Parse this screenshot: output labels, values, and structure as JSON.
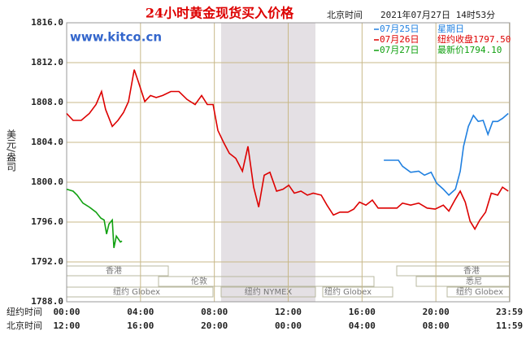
{
  "chart_data": {
    "type": "line",
    "title": "24小时黄金现货买入价格",
    "time_zone_label": "北京时间",
    "timestamp": "2021年07月27日 14时53分",
    "watermark": "www.kitco.cn",
    "y_label": "美元/盎司",
    "x_row_labels": [
      "纽约时间",
      "北京时间"
    ],
    "xlim": [
      0,
      24
    ],
    "xticks": [
      {
        "value": 0,
        "label": "00:00"
      },
      {
        "value": 4,
        "label": "04:00"
      },
      {
        "value": 8,
        "label": "08:00"
      },
      {
        "value": 12,
        "label": "12:00"
      },
      {
        "value": 16,
        "label": "16:00"
      },
      {
        "value": 20,
        "label": "20:00"
      },
      {
        "value": 23.98,
        "label": "23:59"
      }
    ],
    "xticks_beijing": [
      "12:00",
      "16:00",
      "20:00",
      "00:00",
      "04:00",
      "08:00",
      "11:59"
    ],
    "ylim": [
      1788,
      1816
    ],
    "yticks": [
      {
        "value": 1788,
        "label": "1788.0"
      },
      {
        "value": 1792,
        "label": "1792.0"
      },
      {
        "value": 1796,
        "label": "1796.0"
      },
      {
        "value": 1800,
        "label": "1800.0"
      },
      {
        "value": 1804,
        "label": "1804.0"
      },
      {
        "value": 1808,
        "label": "1808.0"
      },
      {
        "value": 1812,
        "label": "1812.0"
      },
      {
        "value": 1816,
        "label": "1816.0"
      }
    ],
    "grid": true,
    "session_labels": [
      "香港",
      "香港",
      "伦敦",
      "悉尼",
      "纽约 Globex",
      "纽约 NYMEX",
      "纽约 Globex",
      "纽约 Globex"
    ],
    "series": [
      {
        "name": "07月25日",
        "note": "星期日",
        "color": "#2080e0",
        "x": [
          17.18,
          17.97,
          18.19,
          18.63,
          19.07,
          19.38,
          19.74,
          20.04,
          20.4,
          20.7,
          21.06,
          21.32,
          21.5,
          21.76,
          22.03,
          22.29,
          22.56,
          22.82,
          23.08,
          23.35,
          23.61,
          23.92
        ],
        "values": [
          1802.2,
          1802.2,
          1801.6,
          1801.0,
          1801.1,
          1800.7,
          1801.0,
          1799.9,
          1799.3,
          1798.7,
          1799.3,
          1801.1,
          1803.6,
          1805.6,
          1806.7,
          1806.1,
          1806.2,
          1804.8,
          1806.1,
          1806.1,
          1806.4,
          1806.9
        ]
      },
      {
        "name": "07月26日",
        "note": "纽约收盘1797.50",
        "color": "#dd0000",
        "x": [
          0,
          0.35,
          0.79,
          1.23,
          1.59,
          1.89,
          2.11,
          2.47,
          2.78,
          3.08,
          3.35,
          3.66,
          3.88,
          4.23,
          4.54,
          4.85,
          5.2,
          5.64,
          6.08,
          6.52,
          6.96,
          7.31,
          7.62,
          7.93,
          8.19,
          8.5,
          8.81,
          9.16,
          9.52,
          9.82,
          10.13,
          10.4,
          10.7,
          11.01,
          11.37,
          11.72,
          12.03,
          12.33,
          12.69,
          13.04,
          13.35,
          13.79,
          14.1,
          14.45,
          14.8,
          15.24,
          15.55,
          15.86,
          16.21,
          16.56,
          16.87,
          17.18,
          17.89,
          18.19,
          18.63,
          19.07,
          19.52,
          19.96,
          20.4,
          20.7,
          21.06,
          21.32,
          21.59,
          21.85,
          22.11,
          22.38,
          22.69,
          23.0,
          23.35,
          23.61,
          23.92
        ],
        "values": [
          1806.9,
          1806.2,
          1806.2,
          1806.9,
          1807.8,
          1809.1,
          1807.3,
          1805.6,
          1806.2,
          1807.0,
          1808.1,
          1811.3,
          1810.1,
          1808.1,
          1808.7,
          1808.5,
          1808.7,
          1809.1,
          1809.1,
          1808.3,
          1807.8,
          1808.7,
          1807.8,
          1807.8,
          1805.2,
          1804.0,
          1802.9,
          1802.4,
          1801.1,
          1803.6,
          1799.5,
          1797.5,
          1800.7,
          1801.0,
          1799.1,
          1799.3,
          1799.7,
          1798.9,
          1799.1,
          1798.7,
          1798.9,
          1798.7,
          1797.7,
          1796.7,
          1797.0,
          1797.0,
          1797.3,
          1798.0,
          1797.7,
          1798.2,
          1797.4,
          1797.4,
          1797.4,
          1797.9,
          1797.7,
          1797.9,
          1797.4,
          1797.3,
          1797.7,
          1797.1,
          1798.3,
          1799.1,
          1798.0,
          1796.1,
          1795.3,
          1796.2,
          1797.0,
          1798.9,
          1798.7,
          1799.5,
          1799.1
        ]
      },
      {
        "name": "07月27日",
        "note": "最新价1794.10",
        "color": "#10a010",
        "x": [
          0,
          0.35,
          0.57,
          0.88,
          1.23,
          1.59,
          1.85,
          2.03,
          2.16,
          2.29,
          2.47,
          2.56,
          2.69,
          2.91,
          3.0
        ],
        "values": [
          1799.3,
          1799.1,
          1798.7,
          1797.9,
          1797.5,
          1797.0,
          1796.4,
          1796.2,
          1794.8,
          1795.8,
          1796.2,
          1793.4,
          1794.6,
          1794.0,
          1794.1
        ]
      }
    ]
  }
}
